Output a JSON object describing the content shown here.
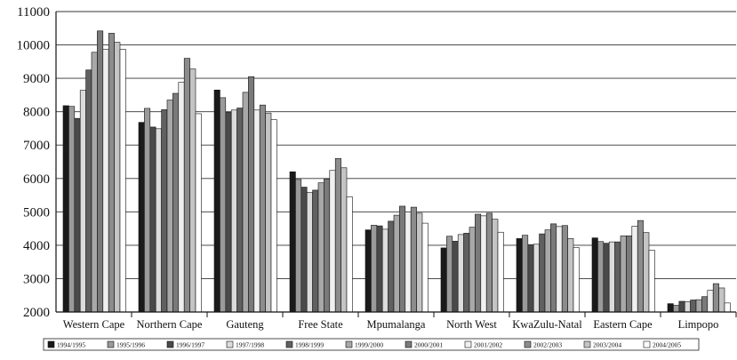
{
  "chart_data": {
    "type": "bar",
    "title": "",
    "xlabel": "",
    "ylabel": "",
    "ylim": [
      2000,
      11000
    ],
    "yticks": [
      2000,
      3000,
      4000,
      5000,
      6000,
      7000,
      8000,
      9000,
      10000,
      11000
    ],
    "grid": "horizontal",
    "legend_position": "bottom",
    "categories": [
      "Western Cape",
      "Northern Cape",
      "Gauteng",
      "Free State",
      "Mpumalanga",
      "North West",
      "KwaZulu-Natal",
      "Eastern Cape",
      "Limpopo"
    ],
    "series": [
      {
        "name": "1994/1995",
        "color": "#1a1a1a",
        "values": [
          8180,
          7680,
          8650,
          6200,
          4460,
          3920,
          4200,
          4220,
          2250
        ]
      },
      {
        "name": "1995/1996",
        "color": "#9a9a9a",
        "values": [
          8160,
          8100,
          8420,
          5970,
          4600,
          4270,
          4300,
          4110,
          2200
        ]
      },
      {
        "name": "1996/1997",
        "color": "#4a4a4a",
        "values": [
          7800,
          7540,
          7980,
          5740,
          4580,
          4120,
          4020,
          4060,
          2320
        ]
      },
      {
        "name": "1997/1998",
        "color": "#dcdcdc",
        "values": [
          8640,
          7490,
          8050,
          5580,
          4480,
          4320,
          4030,
          4100,
          2310
        ]
      },
      {
        "name": "1998/1999",
        "color": "#606060",
        "values": [
          9250,
          8060,
          8110,
          5650,
          4720,
          4360,
          4340,
          4100,
          2360
        ]
      },
      {
        "name": "1999/2000",
        "color": "#a8a8a8",
        "values": [
          9780,
          8350,
          8580,
          5870,
          4900,
          4540,
          4460,
          4280,
          2370
        ]
      },
      {
        "name": "2000/2001",
        "color": "#7a7a7a",
        "values": [
          10420,
          8550,
          9050,
          5980,
          5170,
          4930,
          4640,
          4280,
          2460
        ]
      },
      {
        "name": "2001/2002",
        "color": "#f0f0f0",
        "values": [
          9870,
          8880,
          8050,
          6240,
          5000,
          4880,
          4560,
          4570,
          2650
        ]
      },
      {
        "name": "2002/2003",
        "color": "#8c8c8c",
        "values": [
          10350,
          9600,
          8200,
          6600,
          5140,
          4960,
          4590,
          4740,
          2850
        ]
      },
      {
        "name": "2003/2004",
        "color": "#c4c4c4",
        "values": [
          10080,
          9280,
          7960,
          6320,
          4960,
          4780,
          4200,
          4380,
          2720
        ]
      },
      {
        "name": "2004/2005",
        "color": "#ffffff",
        "values": [
          9870,
          7940,
          7760,
          5450,
          4660,
          4390,
          3930,
          3850,
          2270
        ]
      }
    ]
  }
}
